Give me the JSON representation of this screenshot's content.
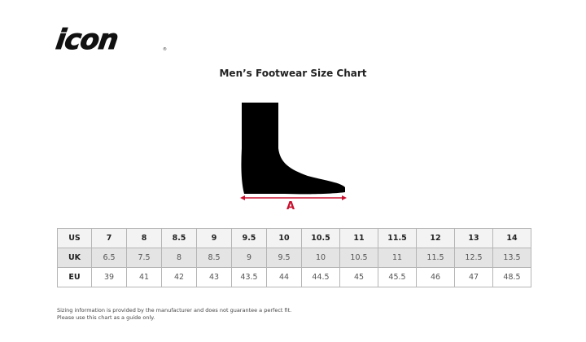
{
  "brand": {
    "logo_text": "icon"
  },
  "title": "Men’s Footwear Size Chart",
  "diagram": {
    "measure_label": "A",
    "arrow_color": "#c8102e"
  },
  "table": {
    "rows": [
      {
        "label": "US",
        "values": [
          "7",
          "8",
          "8.5",
          "9",
          "9.5",
          "10",
          "10.5",
          "11",
          "11.5",
          "12",
          "13",
          "14"
        ]
      },
      {
        "label": "UK",
        "values": [
          "6.5",
          "7.5",
          "8",
          "8.5",
          "9",
          "9.5",
          "10",
          "10.5",
          "11",
          "11.5",
          "12.5",
          "13.5"
        ]
      },
      {
        "label": "EU",
        "values": [
          "39",
          "41",
          "42",
          "43",
          "43.5",
          "44",
          "44.5",
          "45",
          "45.5",
          "46",
          "47",
          "48.5"
        ]
      }
    ]
  },
  "disclaimer": {
    "line1": "Sizing information is provided by the manufacturer and does not guarantee a perfect fit.",
    "line2": "Please use this chart as a guide only."
  }
}
